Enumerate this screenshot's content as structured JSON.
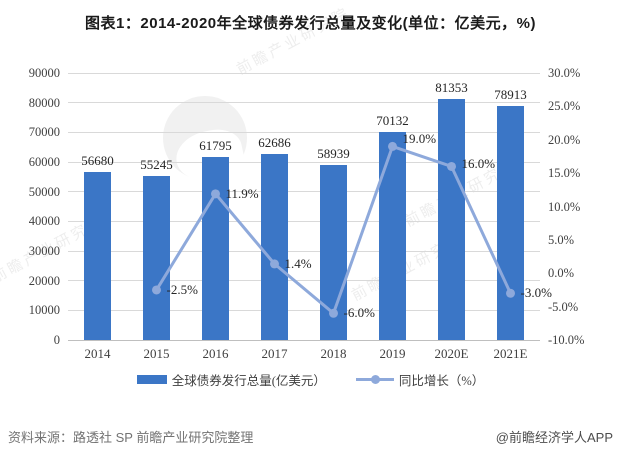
{
  "title": "图表1：2014-2020年全球债券发行总量及变化(单位：亿美元，%)",
  "source_note": "资料来源：路透社 SP 前瞻产业研究院整理",
  "brand_note": "@前瞻经济学人APP",
  "watermark": "前瞻产业研究院",
  "colors": {
    "bar": "#3b76c6",
    "line": "#8ea9db",
    "grid": "#d9d9d9",
    "axis_text": "#404040"
  },
  "chart_data": {
    "type": "bar+line",
    "title": "图表1：2014-2020年全球债券发行总量及变化(单位：亿美元，%)",
    "categories": [
      "2014",
      "2015",
      "2016",
      "2017",
      "2018",
      "2019",
      "2020E",
      "2021E"
    ],
    "series": [
      {
        "name": "全球债券发行总量(亿美元）",
        "type": "bar",
        "axis": "left",
        "color": "#3b76c6",
        "values": [
          56680,
          55245,
          61795,
          62686,
          58939,
          70132,
          81353,
          78913
        ]
      },
      {
        "name": "同比增长（%）",
        "type": "line",
        "axis": "right",
        "color": "#8ea9db",
        "values": [
          null,
          -2.5,
          11.9,
          1.4,
          -6.0,
          19.0,
          16.0,
          -3.0
        ],
        "labels": [
          "",
          "-2.5%",
          "11.9%",
          "1.4%",
          "-6.0%",
          "19.0%",
          "16.0%",
          "-3.0%"
        ]
      }
    ],
    "left_axis": {
      "min": 0,
      "max": 90000,
      "step": 10000,
      "ticks": [
        "0",
        "10000",
        "20000",
        "30000",
        "40000",
        "50000",
        "60000",
        "70000",
        "80000",
        "90000"
      ]
    },
    "right_axis": {
      "min": -10,
      "max": 30,
      "step": 5,
      "ticks": [
        "-10.0%",
        "-5.0%",
        "0.0%",
        "5.0%",
        "10.0%",
        "15.0%",
        "20.0%",
        "25.0%",
        "30.0%"
      ]
    },
    "grid": true,
    "legend_position": "bottom"
  }
}
